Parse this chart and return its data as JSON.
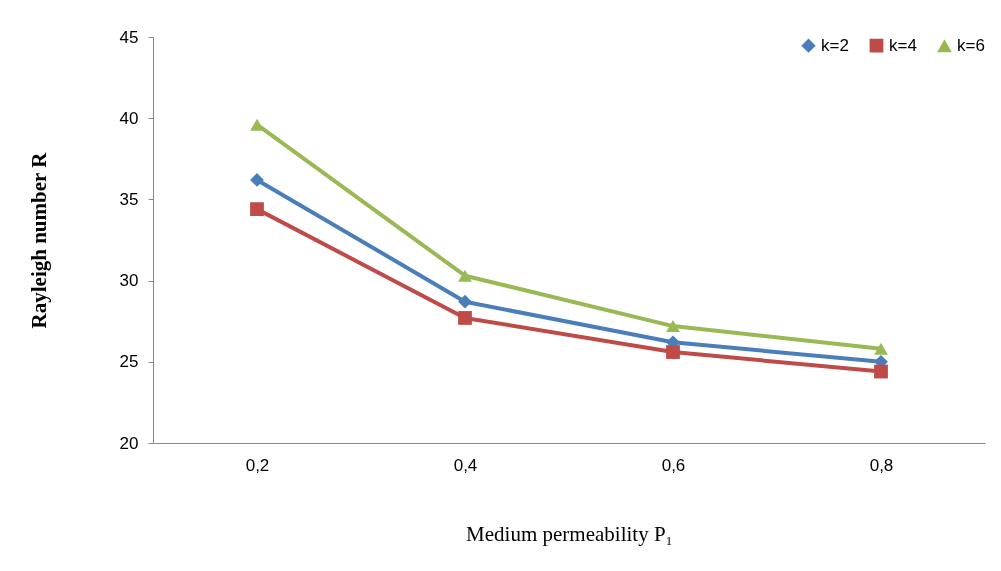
{
  "chart_data": {
    "type": "line",
    "xlabel": "Medium permeability  P₁",
    "ylabel": "Rayleigh number  R",
    "categories": [
      "0,2",
      "0,4",
      "0,6",
      "0,8"
    ],
    "series": [
      {
        "name": "k=2",
        "color": "#4a7ebb",
        "marker": "diamond",
        "values": [
          36.2,
          28.7,
          26.2,
          25.0
        ]
      },
      {
        "name": "k=4",
        "color": "#be4b48",
        "marker": "square",
        "values": [
          34.4,
          27.7,
          25.6,
          24.4
        ]
      },
      {
        "name": "k=6",
        "color": "#98b954",
        "marker": "triangle",
        "values": [
          39.6,
          30.3,
          27.2,
          25.8
        ]
      }
    ],
    "ylim": [
      20,
      45
    ],
    "yticks": [
      20,
      25,
      30,
      35,
      40,
      45
    ],
    "grid": false,
    "legend": "top right"
  }
}
